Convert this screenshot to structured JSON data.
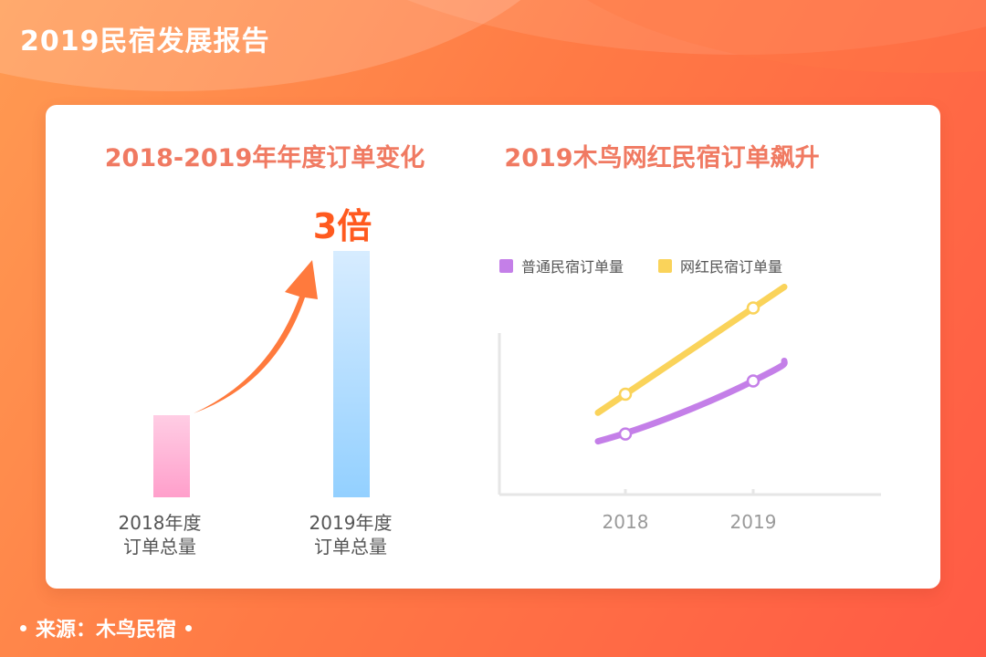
{
  "header": {
    "title": "2019民宿发展报告"
  },
  "footer": {
    "source": "来源：木鸟民宿"
  },
  "chart_data": [
    {
      "type": "bar",
      "title": "2018-2019年年度订单变化",
      "categories": [
        {
          "line1": "2018年度",
          "line2": "订单总量"
        },
        {
          "line1": "2019年度",
          "line2": "订单总量"
        }
      ],
      "values": [
        1,
        3
      ],
      "annotation": "3倍",
      "colors": {
        "bar2018": [
          "#ffcde4",
          "#ff9fcb"
        ],
        "bar2019": [
          "#d7ecff",
          "#93d0ff"
        ],
        "arrow": "#ff7a3d",
        "annotation": "#ff5a1f"
      }
    },
    {
      "type": "line",
      "title": "2019木鸟网红民宿订单飙升",
      "x": [
        "2018",
        "2019"
      ],
      "series": [
        {
          "name": "普通民宿订单量",
          "color": "#c47fe8",
          "values": [
            1.0,
            2.6
          ]
        },
        {
          "name": "网红民宿订单量",
          "color": "#fad35a",
          "values": [
            2.2,
            4.8
          ]
        }
      ],
      "legend_position": "top-left",
      "grid": false
    }
  ]
}
